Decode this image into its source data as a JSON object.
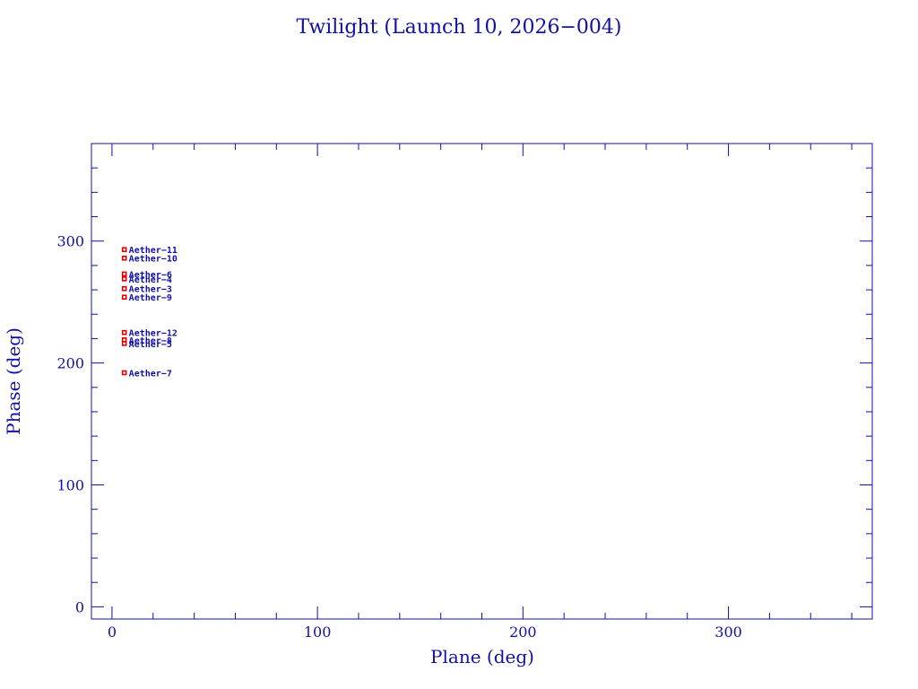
{
  "chart_data": {
    "type": "scatter",
    "title": "Twilight (Launch 10, 2026−004)",
    "xlabel": "Plane (deg)",
    "ylabel": "Phase (deg)",
    "xlim": [
      -10,
      370
    ],
    "ylim": [
      -10,
      380
    ],
    "x_ticks_major": [
      0,
      100,
      200,
      300
    ],
    "y_ticks_major": [
      0,
      100,
      200,
      300
    ],
    "x_minor_step": 20,
    "y_minor_step": 20,
    "grid": false,
    "marker_color": "#e00000",
    "text_color": "#1010a8",
    "points": [
      {
        "label": "Aether−11",
        "x": 6,
        "y": 293
      },
      {
        "label": "Aether−10",
        "x": 6,
        "y": 286
      },
      {
        "label": "Aether−6",
        "x": 6,
        "y": 273
      },
      {
        "label": "Aether−4",
        "x": 6,
        "y": 269
      },
      {
        "label": "Aether−3",
        "x": 6,
        "y": 261
      },
      {
        "label": "Aether−9",
        "x": 6,
        "y": 254
      },
      {
        "label": "Aether−12",
        "x": 6,
        "y": 225
      },
      {
        "label": "Aether−8",
        "x": 6,
        "y": 219
      },
      {
        "label": "Aether−5",
        "x": 6,
        "y": 216
      },
      {
        "label": "Aether−7",
        "x": 6,
        "y": 192
      }
    ]
  }
}
